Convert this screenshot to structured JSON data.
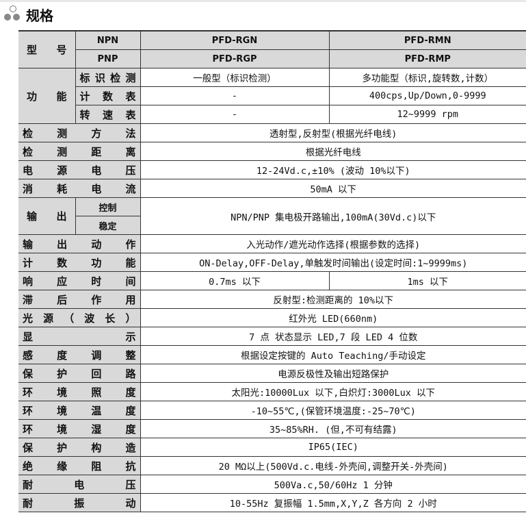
{
  "title": "规格",
  "header": {
    "label": "型号",
    "npn": "NPN",
    "pnp": "PNP",
    "npn_a": "PFD-RGN",
    "npn_b": "PFD-RMN",
    "pnp_a": "PFD-RGP",
    "pnp_b": "PFD-RMP"
  },
  "function": {
    "label": "功能",
    "rows": [
      {
        "sub": "标识检测",
        "a": "一般型（标识检测）",
        "b": "多功能型（标识,旋转数,计数）"
      },
      {
        "sub": "计数表",
        "a": "-",
        "b": "400cps,Up/Down,0-9999"
      },
      {
        "sub": "转速表",
        "a": "-",
        "b": "12~9999 rpm"
      }
    ]
  },
  "rows1": [
    {
      "label": "检测方法",
      "value": "透射型,反射型(根据光纤电线)"
    },
    {
      "label": "检测距离",
      "value": "根据光纤电线"
    },
    {
      "label": "电源电压",
      "value": "12-24Vd.c,±10% (波动 10%以下)"
    },
    {
      "label": "消耗电流",
      "value": "50mA 以下"
    }
  ],
  "output": {
    "label": "输出",
    "sub1": "控制",
    "sub2": "稳定",
    "value": "NPN/PNP 集电极开路输出,100mA(30Vd.c)以下"
  },
  "rows2": [
    {
      "label": "输出动作",
      "value": "入光动作/遮光动作选择(根据参数的选择)"
    },
    {
      "label": "计数功能",
      "value": "ON-Delay,OFF-Delay,单触发时间输出(设定时间:1~9999ms)"
    }
  ],
  "response": {
    "label": "响应时间",
    "a": "0.7ms 以下",
    "b": "1ms 以下"
  },
  "rows3": [
    {
      "label": "滞后作用",
      "value": "反射型:检测距离的 10%以下"
    },
    {
      "label": "光源（波长）",
      "value": "红外光 LED(660nm)"
    },
    {
      "label": "显示",
      "value": "7 点 状态显示 LED,7 段 LED 4 位数"
    },
    {
      "label": "感度调整",
      "value": "根据设定按键的 Auto Teaching/手动设定"
    },
    {
      "label": "保护回路",
      "value": "电源反极性及输出短路保护"
    },
    {
      "label": "环境照度",
      "value": "太阳光:10000Lux 以下,白炽灯:3000Lux 以下"
    },
    {
      "label": "环境温度",
      "value": "-10~55℃,(保管环境温度:-25~70℃)"
    },
    {
      "label": "环境湿度",
      "value": "35~85%RH. (但,不可有结露)"
    },
    {
      "label": "保护构造",
      "value": "IP65(IEC)"
    },
    {
      "label": "绝缘阻抗",
      "value": "20 MΩ以上(500Vd.c.电线-外壳间,调整开关-外壳间)"
    },
    {
      "label": "耐电压",
      "value": "500Va.c,50/60Hz 1 分钟"
    },
    {
      "label": "耐振动",
      "value": "10-55Hz 复振幅 1.5mm,X,Y,Z 各方向 2 小时"
    }
  ]
}
